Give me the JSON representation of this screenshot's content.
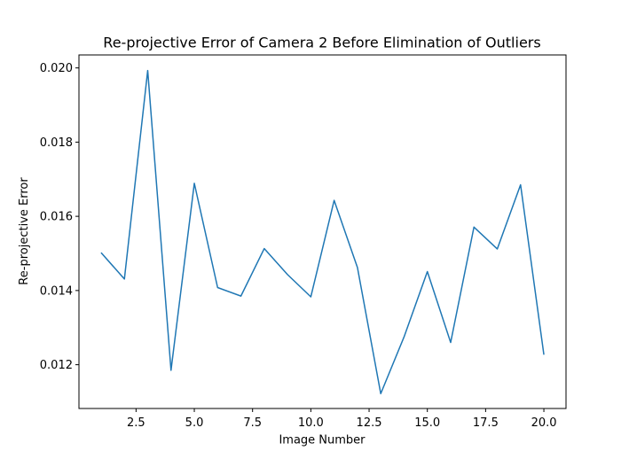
{
  "chart_data": {
    "type": "line",
    "title": "Re-projective Error of Camera 2 Before Elimination of Outliers",
    "xlabel": "Image Number",
    "ylabel": "Re-projective Error",
    "xlim": [
      0.05,
      20.95
    ],
    "ylim": [
      0.01082,
      0.02035
    ],
    "xticks": [
      2.5,
      5.0,
      7.5,
      10.0,
      12.5,
      15.0,
      17.5,
      20.0
    ],
    "xtick_labels": [
      "2.5",
      "5.0",
      "7.5",
      "10.0",
      "12.5",
      "15.0",
      "17.5",
      "20.0"
    ],
    "yticks": [
      0.012,
      0.014,
      0.016,
      0.018,
      0.02
    ],
    "ytick_labels": [
      "0.012",
      "0.014",
      "0.016",
      "0.018",
      "0.020"
    ],
    "grid": false,
    "series": [
      {
        "color": "#1f77b4",
        "x": [
          1,
          2,
          3,
          4,
          5,
          6,
          7,
          8,
          9,
          10,
          11,
          12,
          13,
          14,
          15,
          16,
          17,
          18,
          19,
          20
        ],
        "values": [
          0.01502,
          0.01431,
          0.01993,
          0.01185,
          0.01689,
          0.01408,
          0.01385,
          0.01513,
          0.01443,
          0.01383,
          0.01643,
          0.01462,
          0.01122,
          0.01275,
          0.01451,
          0.0126,
          0.01571,
          0.01512,
          0.01685,
          0.01227
        ]
      }
    ]
  }
}
